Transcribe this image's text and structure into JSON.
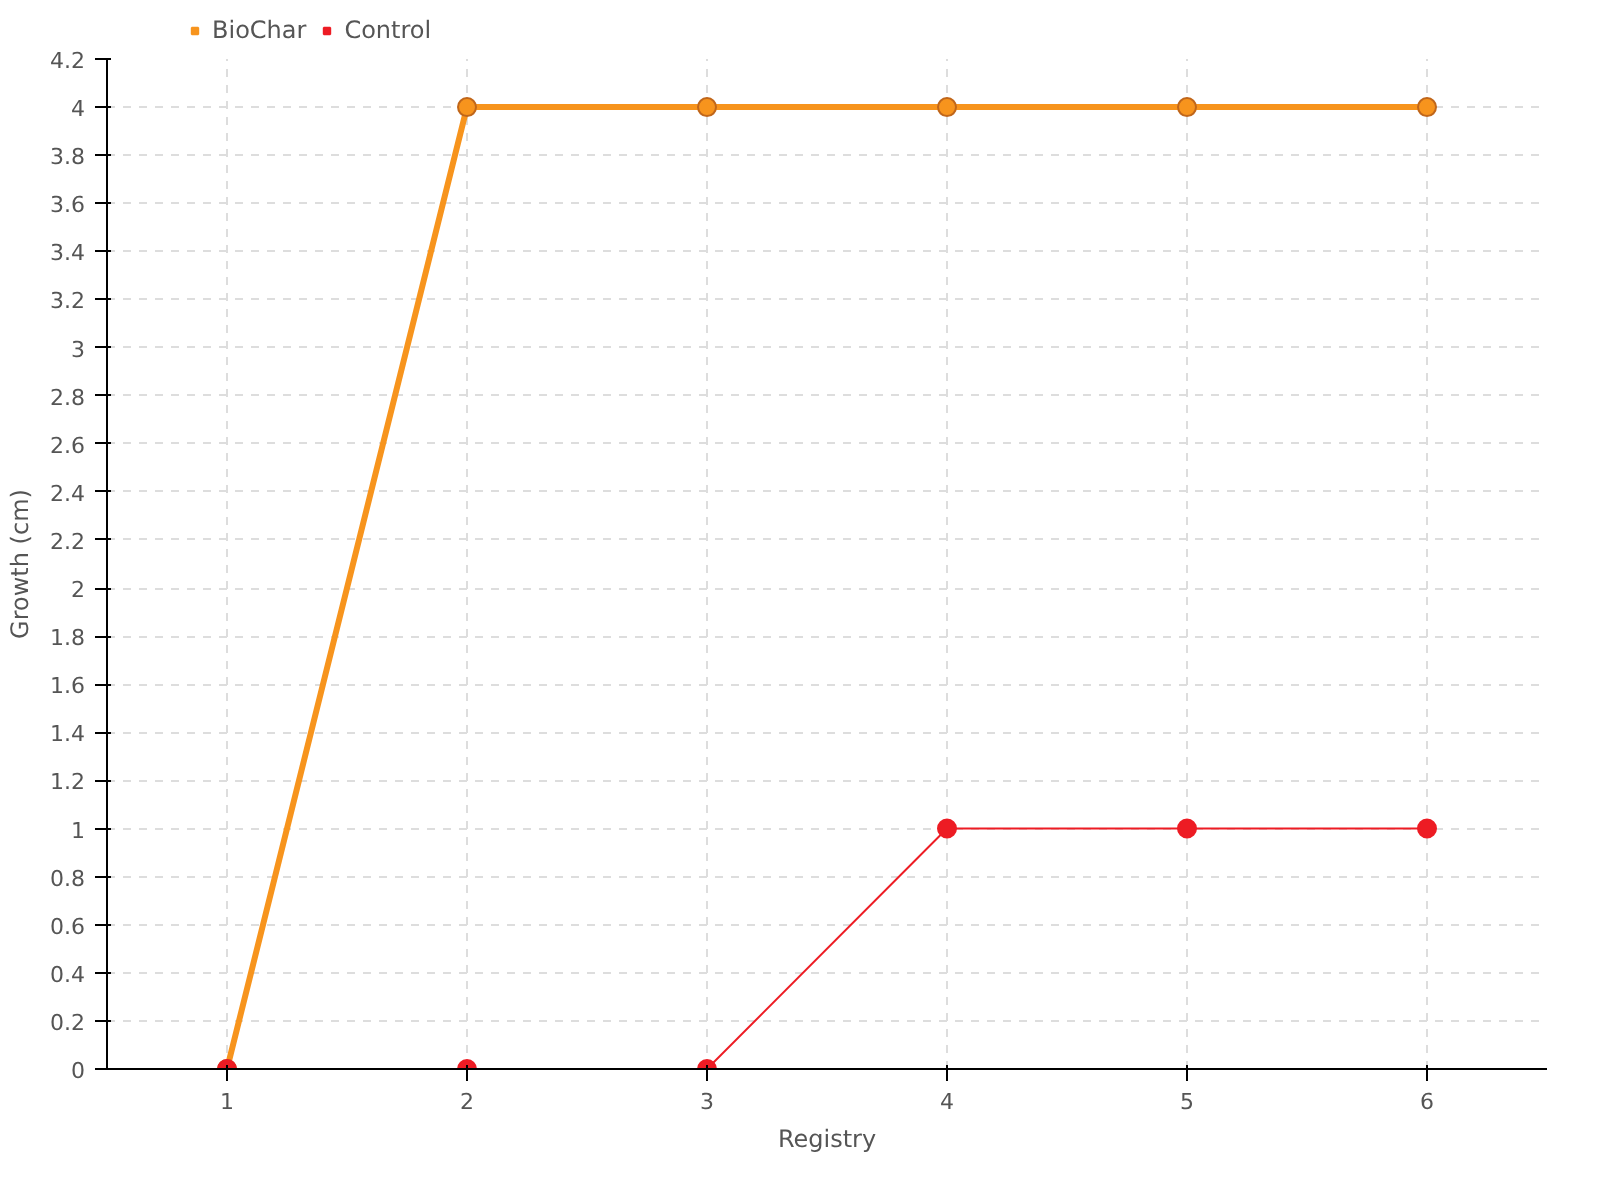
{
  "chart_data": {
    "type": "line",
    "xlabel": "Registry",
    "ylabel": "Growth (cm)",
    "x": [
      1,
      2,
      3,
      4,
      5,
      6
    ],
    "series": [
      {
        "name": "BioChar",
        "color": "#f7941d",
        "values": [
          0,
          4,
          4,
          4,
          4,
          4
        ]
      },
      {
        "name": "Control",
        "color": "#ed1c24",
        "values": [
          0,
          0,
          0,
          1,
          1,
          1
        ]
      }
    ],
    "xlim": [
      0.5,
      6.5
    ],
    "xticks": [
      1,
      2,
      3,
      4,
      5,
      6
    ],
    "ylim": [
      0,
      4.2
    ],
    "yticks": [
      0,
      0.2,
      0.4,
      0.6,
      0.8,
      1,
      1.2,
      1.4,
      1.6,
      1.8,
      2,
      2.2,
      2.4,
      2.6,
      2.8,
      3,
      3.2,
      3.4,
      3.6,
      3.8,
      4,
      4.2
    ],
    "grid": true,
    "legend": "top left",
    "marker": "circle",
    "line_style": "solid"
  }
}
